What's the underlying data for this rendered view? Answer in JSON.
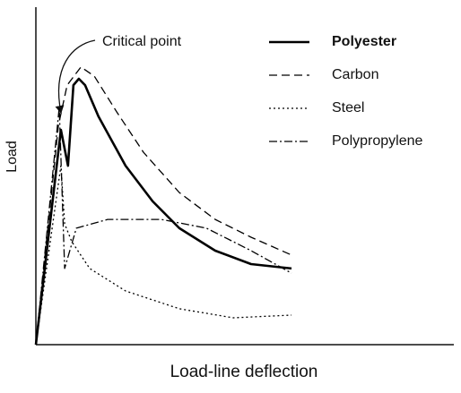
{
  "chart_data": {
    "type": "line",
    "x_label": "Load-line deflection",
    "y_label": "Load",
    "annotation": "Critical point",
    "xlim": [
      0,
      100
    ],
    "ylim": [
      0,
      100
    ],
    "legend": "upper right",
    "series": [
      {
        "name": "Polyester",
        "color": "#000000",
        "style": "solid",
        "x": [
          0,
          6,
          7.7,
          9,
          10.3,
          11.8,
          15,
          21.5,
          28,
          34.4,
          43,
          51.6,
          61.3
        ],
        "values": [
          0,
          64,
          53.3,
          77.3,
          79.2,
          77.3,
          68,
          53.3,
          42.7,
          34.7,
          28,
          24,
          22.7
        ]
      },
      {
        "name": "Carbon",
        "color": "#000000",
        "style": "dashed",
        "x": [
          0,
          5.4,
          7.5,
          10.8,
          14,
          19.4,
          25.8,
          34.4,
          43,
          51.6,
          61.3
        ],
        "values": [
          0,
          65.3,
          77.3,
          82.7,
          80,
          69.3,
          57.3,
          45.3,
          37.3,
          32,
          26.7
        ]
      },
      {
        "name": "Steel",
        "color": "#000000",
        "style": "dotted",
        "x": [
          0,
          6,
          6.9,
          8.6,
          12.9,
          21.5,
          34.4,
          47.3,
          61.3
        ],
        "values": [
          0,
          53.3,
          36,
          30.7,
          22.7,
          16,
          10.7,
          8,
          8.8
        ]
      },
      {
        "name": "Polypropylene",
        "color": "#000000",
        "style": "dashdot",
        "x": [
          0,
          5.6,
          6.9,
          9.7,
          17.2,
          30.1,
          40.9,
          51.6,
          61.3
        ],
        "values": [
          0,
          70.7,
          22.7,
          34.7,
          37.3,
          37.3,
          34.7,
          28,
          21.3
        ]
      }
    ]
  }
}
